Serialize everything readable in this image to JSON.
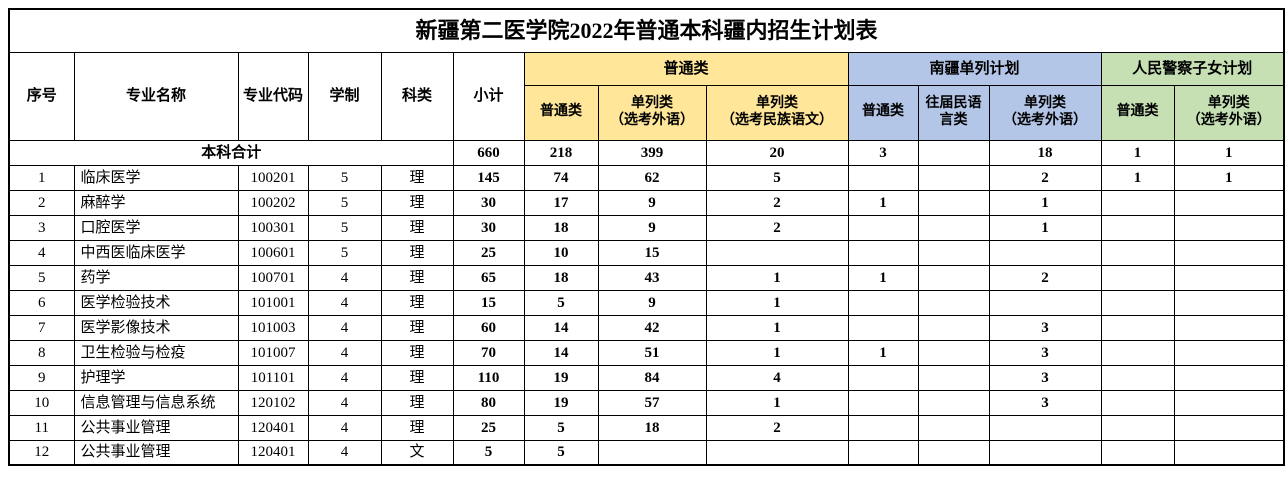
{
  "title": "新疆第二医学院2022年普通本科疆内招生计划表",
  "header": {
    "seq": "序号",
    "major_name": "专业名称",
    "major_code": "专业代码",
    "years": "学制",
    "category": "科类",
    "subtotal": "小计",
    "groups": [
      {
        "label": "普通类",
        "color": "#FFE699",
        "subs": [
          "普通类",
          "单列类\n（选考外语）",
          "单列类\n（选考民族语文）"
        ]
      },
      {
        "label": "南疆单列计划",
        "color": "#B4C6E7",
        "subs": [
          "普通类",
          "往届民语言类",
          "单列类\n（选考外语）"
        ]
      },
      {
        "label": "人民警察子女计划",
        "color": "#C6E0B4",
        "subs": [
          "普通类",
          "单列类\n（选考外语）"
        ]
      }
    ]
  },
  "summary": {
    "label": "本科合计",
    "values": [
      "660",
      "218",
      "399",
      "20",
      "3",
      "",
      "18",
      "1",
      "1"
    ]
  },
  "rows": [
    {
      "cells": [
        "1",
        "临床医学",
        "100201",
        "5",
        "理",
        "145",
        "74",
        "62",
        "5",
        "",
        "",
        "2",
        "1",
        "1"
      ]
    },
    {
      "cells": [
        "2",
        "麻醉学",
        "100202",
        "5",
        "理",
        "30",
        "17",
        "9",
        "2",
        "1",
        "",
        "1",
        "",
        ""
      ]
    },
    {
      "cells": [
        "3",
        "口腔医学",
        "100301",
        "5",
        "理",
        "30",
        "18",
        "9",
        "2",
        "",
        "",
        "1",
        "",
        ""
      ]
    },
    {
      "cells": [
        "4",
        "中西医临床医学",
        "100601",
        "5",
        "理",
        "25",
        "10",
        "15",
        "",
        "",
        "",
        "",
        "",
        ""
      ]
    },
    {
      "cells": [
        "5",
        "药学",
        "100701",
        "4",
        "理",
        "65",
        "18",
        "43",
        "1",
        "1",
        "",
        "2",
        "",
        ""
      ]
    },
    {
      "cells": [
        "6",
        "医学检验技术",
        "101001",
        "4",
        "理",
        "15",
        "5",
        "9",
        "1",
        "",
        "",
        "",
        "",
        ""
      ]
    },
    {
      "cells": [
        "7",
        "医学影像技术",
        "101003",
        "4",
        "理",
        "60",
        "14",
        "42",
        "1",
        "",
        "",
        "3",
        "",
        ""
      ]
    },
    {
      "cells": [
        "8",
        "卫生检验与检疫",
        "101007",
        "4",
        "理",
        "70",
        "14",
        "51",
        "1",
        "1",
        "",
        "3",
        "",
        ""
      ]
    },
    {
      "cells": [
        "9",
        "护理学",
        "101101",
        "4",
        "理",
        "110",
        "19",
        "84",
        "4",
        "",
        "",
        "3",
        "",
        ""
      ]
    },
    {
      "cells": [
        "10",
        "信息管理与信息系统",
        "120102",
        "4",
        "理",
        "80",
        "19",
        "57",
        "1",
        "",
        "",
        "3",
        "",
        ""
      ]
    },
    {
      "cells": [
        "11",
        "公共事业管理",
        "120401",
        "4",
        "理",
        "25",
        "5",
        "18",
        "2",
        "",
        "",
        "",
        "",
        ""
      ]
    },
    {
      "cells": [
        "12",
        "公共事业管理",
        "120401",
        "4",
        "文",
        "5",
        "5",
        "",
        "",
        "",
        "",
        "",
        "",
        ""
      ]
    }
  ]
}
